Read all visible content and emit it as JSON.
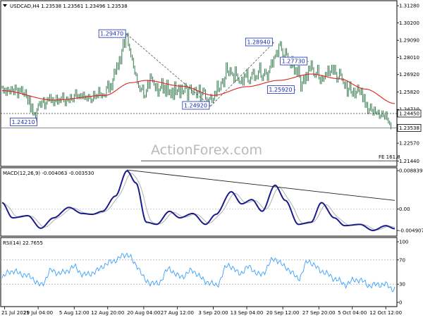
{
  "header": {
    "symbol_line": "USDCAD,H4 1.23538 1.23561 1.23496 1.23538"
  },
  "watermark": "ActionForex.com",
  "colors": {
    "candle": "#1e6b3a",
    "ma": "#e22020",
    "macd_main": "#1b1b8a",
    "macd_signal": "#b0b0b0",
    "rsi": "#3aa0ff",
    "trendline": "#222222",
    "dashed": "#555555",
    "label_border": "#1a2fb0"
  },
  "chart_data": [
    {
      "type": "line",
      "name": "price",
      "y_ticks": [
        "1.31280",
        "1.30200",
        "1.29090",
        "1.28010",
        "1.26920",
        "1.25820",
        "1.24710",
        "1.22570",
        "1.21440"
      ],
      "ylim": [
        1.211,
        1.316
      ],
      "x_tick_labels": [
        "21 Jul 2021",
        "29 Jul 04:00",
        "5 Aug 12:00",
        "12 Aug 20:00",
        "20 Aug 04:00",
        "27 Aug 12:00",
        "3 Sep 20:00",
        "13 Sep 04:00",
        "20 Sep 12:00",
        "27 Sep 20:00",
        "5 Oct 04:00",
        "12 Oct 12:00"
      ],
      "x_tick_index": [
        2,
        28,
        56,
        82,
        110,
        136,
        164,
        190,
        218,
        246,
        272,
        298
      ],
      "close": [
        1.2612,
        1.258,
        1.26,
        1.2565,
        1.2605,
        1.259,
        1.2575,
        1.261,
        1.2595,
        1.257,
        1.262,
        1.26,
        1.255,
        1.26,
        1.2585,
        1.261,
        1.257,
        1.256,
        1.259,
        1.255,
        1.251,
        1.255,
        1.246,
        1.25,
        1.244,
        1.2445,
        1.2421,
        1.247,
        1.25,
        1.2515,
        1.249,
        1.252,
        1.254,
        1.248,
        1.251,
        1.254,
        1.253,
        1.256,
        1.252,
        1.254,
        1.25,
        1.2525,
        1.2555,
        1.251,
        1.2535,
        1.252,
        1.2545,
        1.257,
        1.2525,
        1.25,
        1.2545,
        1.253,
        1.252,
        1.256,
        1.2535,
        1.2525,
        1.256,
        1.259,
        1.2545,
        1.256,
        1.2545,
        1.2565,
        1.2545,
        1.2575,
        1.254,
        1.255,
        1.253,
        1.256,
        1.2545,
        1.252,
        1.253,
        1.258,
        1.2545,
        1.256,
        1.255,
        1.2605,
        1.257,
        1.255,
        1.2565,
        1.256,
        1.2555,
        1.261,
        1.2645,
        1.2585,
        1.263,
        1.26,
        1.266,
        1.272,
        1.27,
        1.276,
        1.273,
        1.28,
        1.2765,
        1.2845,
        1.291,
        1.287,
        1.294,
        1.2947,
        1.288,
        1.285,
        1.281,
        1.279,
        1.274,
        1.27,
        1.269,
        1.264,
        1.2615,
        1.259,
        1.26,
        1.262,
        1.255,
        1.2555,
        1.259,
        1.2645,
        1.261,
        1.269,
        1.267,
        1.265,
        1.263,
        1.2595,
        1.263,
        1.256,
        1.2595,
        1.261,
        1.266,
        1.258,
        1.262,
        1.256,
        1.265,
        1.257,
        1.259,
        1.255,
        1.26,
        1.254,
        1.264,
        1.257,
        1.259,
        1.262,
        1.255,
        1.262,
        1.2575,
        1.2585,
        1.263,
        1.261,
        1.2535,
        1.2605,
        1.262,
        1.258,
        1.257,
        1.26,
        1.2605,
        1.255,
        1.258,
        1.262,
        1.251,
        1.257,
        1.26,
        1.259,
        1.254,
        1.253,
        1.2492,
        1.254,
        1.256,
        1.252,
        1.2535,
        1.258,
        1.256,
        1.2645,
        1.259,
        1.26,
        1.264,
        1.266,
        1.262,
        1.267,
        1.276,
        1.271,
        1.269,
        1.273,
        1.27,
        1.269,
        1.265,
        1.2735,
        1.269,
        1.266,
        1.2645,
        1.264,
        1.267,
        1.263,
        1.269,
        1.268,
        1.272,
        1.265,
        1.264,
        1.267,
        1.27,
        1.272,
        1.266,
        1.268,
        1.267,
        1.271,
        1.276,
        1.268,
        1.266,
        1.269,
        1.272,
        1.27,
        1.266,
        1.271,
        1.274,
        1.278,
        1.2745,
        1.28,
        1.281,
        1.284,
        1.281,
        1.288,
        1.2894,
        1.285,
        1.281,
        1.279,
        1.285,
        1.282,
        1.276,
        1.2785,
        1.274,
        1.28,
        1.2745,
        1.27,
        1.273,
        1.269,
        1.274,
        1.268,
        1.2592,
        1.264,
        1.268,
        1.264,
        1.27,
        1.266,
        1.274,
        1.272,
        1.2773,
        1.273,
        1.269,
        1.268,
        1.27,
        1.2745,
        1.267,
        1.264,
        1.268,
        1.2655,
        1.267,
        1.27,
        1.269,
        1.274,
        1.269,
        1.271,
        1.2745,
        1.27,
        1.2745,
        1.27,
        1.265,
        1.267,
        1.272,
        1.269,
        1.266,
        1.264,
        1.261,
        1.264,
        1.256,
        1.26,
        1.264,
        1.258,
        1.256,
        1.26,
        1.255,
        1.258,
        1.262,
        1.259,
        1.257,
        1.26,
        1.2525,
        1.256,
        1.249,
        1.251,
        1.245,
        1.247,
        1.25,
        1.2465,
        1.244,
        1.248,
        1.245,
        1.2445,
        1.246,
        1.242,
        1.243,
        1.2455,
        1.243,
        1.2415,
        1.245,
        1.241,
        1.239,
        1.238,
        1.2354
      ],
      "ma_control_points": [
        [
          0,
          1.259
        ],
        [
          40,
          1.253
        ],
        [
          80,
          1.256
        ],
        [
          100,
          1.264
        ],
        [
          112,
          1.2655
        ],
        [
          140,
          1.2618
        ],
        [
          164,
          1.256
        ],
        [
          190,
          1.2615
        ],
        [
          215,
          1.2655
        ],
        [
          240,
          1.2695
        ],
        [
          262,
          1.2665
        ],
        [
          282,
          1.26
        ],
        [
          305,
          1.2508
        ]
      ],
      "annotations": [
        {
          "label": "1.24210",
          "value": 1.2421,
          "index": 26,
          "placement": "below-left"
        },
        {
          "label": "1.29470",
          "value": 1.2947,
          "index": 97,
          "placement": "left"
        },
        {
          "label": "1.24920",
          "value": 1.2492,
          "index": 162,
          "placement": "left"
        },
        {
          "label": "1.28940",
          "value": 1.2894,
          "index": 211,
          "placement": "left"
        },
        {
          "label": "1.27730",
          "value": 1.2773,
          "index": 238,
          "placement": "left"
        },
        {
          "label": "1.25920",
          "value": 1.2592,
          "index": 228,
          "placement": "left"
        }
      ],
      "price_boxes": [
        {
          "label": "1.24450",
          "value": 1.2445
        },
        {
          "label": "1.23538",
          "value": 1.23538
        }
      ],
      "dashed_levels": [
        1.2445
      ],
      "solid_levels": [
        1.2354
      ],
      "fe_level": {
        "label": "FE 161.8",
        "value": 1.2145
      },
      "dashed_swings": [
        [
          97,
          1.2947,
          162,
          1.2492
        ],
        [
          162,
          1.2492,
          211,
          1.2894
        ]
      ]
    },
    {
      "type": "line",
      "name": "MACD(12,26,9)",
      "caption": "MACD(12,26,9) -0.004063 -0.003530",
      "y_ticks": [
        "0.008839",
        "0.00",
        "-0.004907"
      ],
      "ylim": [
        -0.0062,
        0.0095
      ],
      "control_points": [
        [
          0,
          0.0015
        ],
        [
          8,
          -0.002
        ],
        [
          20,
          -0.0015
        ],
        [
          30,
          -0.0044
        ],
        [
          40,
          -0.002
        ],
        [
          52,
          0.0004
        ],
        [
          62,
          -0.001
        ],
        [
          70,
          -0.0012
        ],
        [
          78,
          -0.0005
        ],
        [
          88,
          0.003
        ],
        [
          97,
          0.0088
        ],
        [
          104,
          0.006
        ],
        [
          112,
          -0.003
        ],
        [
          120,
          -0.0035
        ],
        [
          130,
          -0.0005
        ],
        [
          138,
          -0.002
        ],
        [
          148,
          -0.001
        ],
        [
          158,
          -0.0035
        ],
        [
          166,
          -0.0012
        ],
        [
          178,
          0.004
        ],
        [
          186,
          0.0012
        ],
        [
          194,
          0.0022
        ],
        [
          202,
          -0.0005
        ],
        [
          212,
          0.0055
        ],
        [
          220,
          0.002
        ],
        [
          230,
          -0.0035
        ],
        [
          240,
          -0.003
        ],
        [
          248,
          0.0015
        ],
        [
          258,
          -0.002
        ],
        [
          266,
          -0.0038
        ],
        [
          278,
          -0.0035
        ],
        [
          288,
          -0.0049
        ],
        [
          298,
          -0.0038
        ],
        [
          305,
          -0.0045
        ]
      ],
      "signal_lag": 6,
      "trendline": [
        [
          97,
          0.009
        ],
        [
          305,
          0.002
        ]
      ]
    },
    {
      "type": "line",
      "name": "RSI(14)",
      "caption": "RSI(14) 22.7655",
      "y_ticks": [
        "100",
        "70",
        "30",
        "0"
      ],
      "ylim": [
        0,
        100
      ],
      "levels": [
        30,
        70
      ],
      "control_points": [
        [
          0,
          40
        ],
        [
          6,
          52
        ],
        [
          14,
          48
        ],
        [
          22,
          42
        ],
        [
          30,
          28
        ],
        [
          38,
          52
        ],
        [
          46,
          48
        ],
        [
          56,
          58
        ],
        [
          64,
          45
        ],
        [
          72,
          50
        ],
        [
          80,
          62
        ],
        [
          88,
          70
        ],
        [
          97,
          80
        ],
        [
          104,
          62
        ],
        [
          112,
          35
        ],
        [
          120,
          30
        ],
        [
          130,
          55
        ],
        [
          138,
          42
        ],
        [
          148,
          52
        ],
        [
          158,
          35
        ],
        [
          166,
          28
        ],
        [
          176,
          62
        ],
        [
          184,
          48
        ],
        [
          192,
          58
        ],
        [
          200,
          45
        ],
        [
          212,
          72
        ],
        [
          220,
          58
        ],
        [
          230,
          40
        ],
        [
          238,
          68
        ],
        [
          248,
          52
        ],
        [
          258,
          40
        ],
        [
          266,
          30
        ],
        [
          276,
          38
        ],
        [
          286,
          28
        ],
        [
          296,
          30
        ],
        [
          305,
          22
        ]
      ]
    }
  ]
}
